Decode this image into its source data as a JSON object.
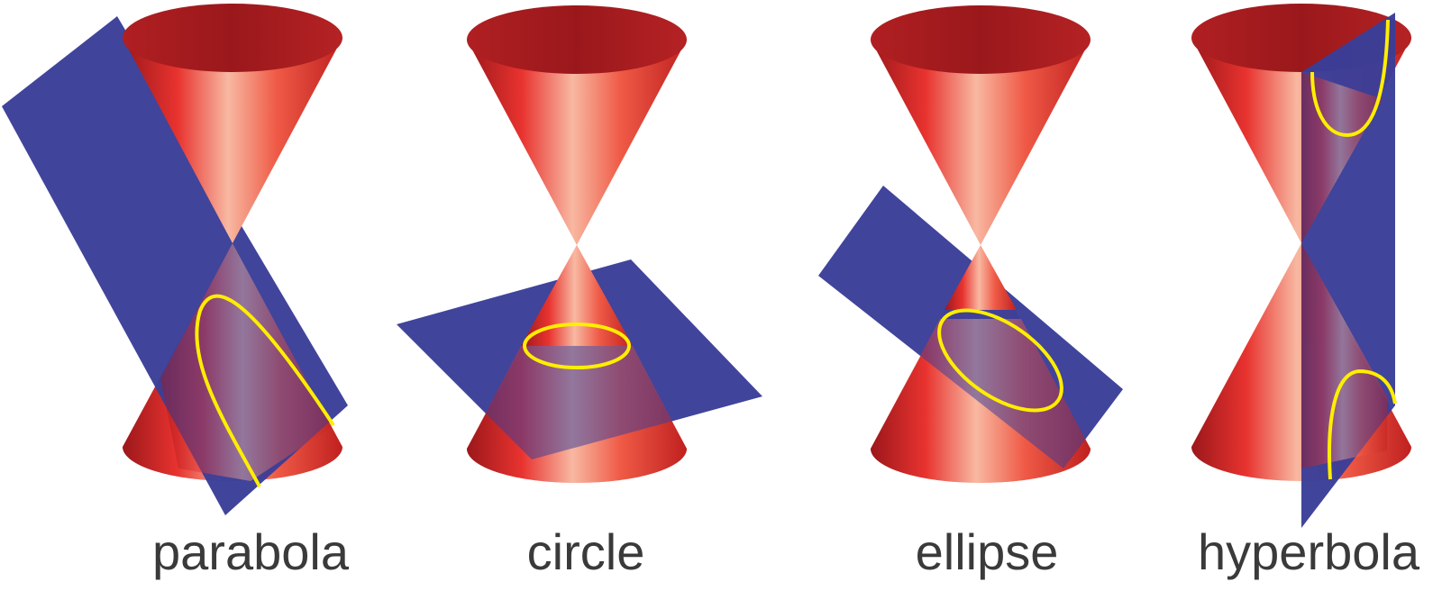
{
  "panels": [
    {
      "label": "parabola"
    },
    {
      "label": "circle"
    },
    {
      "label": "ellipse"
    },
    {
      "label": "hyperbola"
    }
  ],
  "colors": {
    "plane": "#3a3e98",
    "cone_dark": "#a01a1e",
    "cone_mid": "#e8332f",
    "cone_light": "#f7b79f",
    "curve": "#ffee00",
    "text": "#3a3a3a"
  }
}
